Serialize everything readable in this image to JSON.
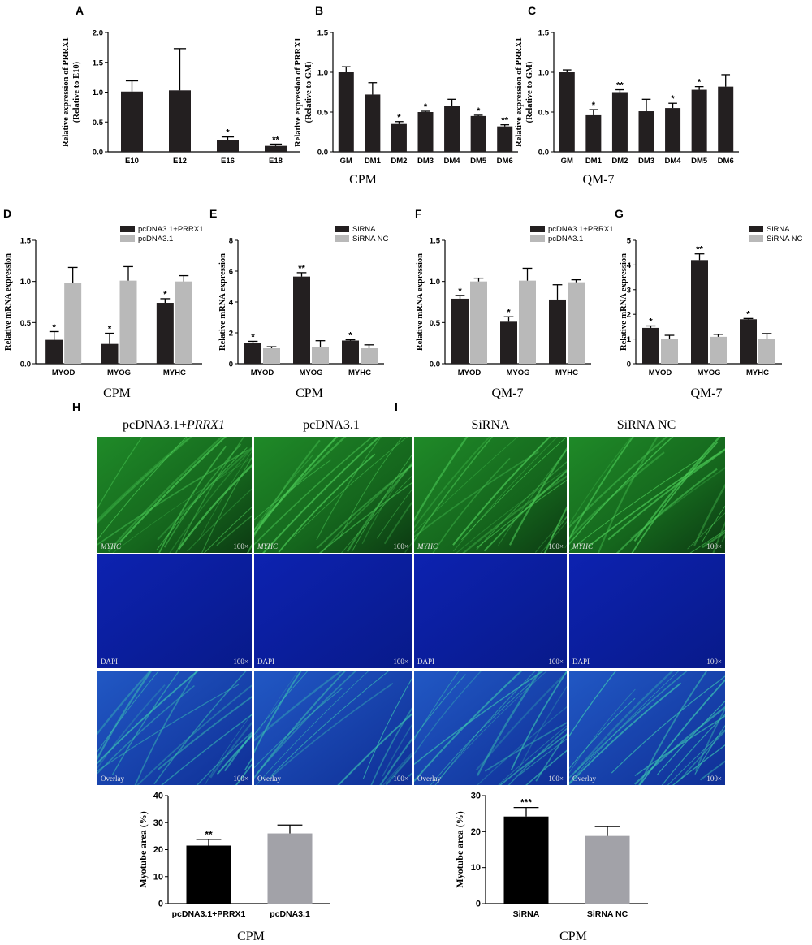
{
  "panel_letters": {
    "A": "A",
    "B": "B",
    "C": "C",
    "D": "D",
    "E": "E",
    "F": "F",
    "G": "G",
    "H": "H",
    "I": "I"
  },
  "captions": {
    "B": "CPM",
    "C": "QM-7",
    "D": "CPM",
    "E": "CPM",
    "F": "QM-7",
    "G": "QM-7",
    "H": "CPM",
    "I": "CPM"
  },
  "colors": {
    "black_bar": "#231f20",
    "gray_bar": "#b9b9b9",
    "gray_bar_large": "#a2a2a8",
    "green_fluor": "#1e7a25",
    "blue_dapi": "#0b1f9e",
    "overlay": "#1a4ab0"
  },
  "micrographs": {
    "H": {
      "columns": [
        "pcDNA3.1+",
        "pcDNA3.1"
      ],
      "first_col_italic": "PRRX1",
      "rows": [
        "MYHC",
        "DAPI",
        "Overlay"
      ],
      "scale": "100×"
    },
    "I": {
      "columns": [
        "SiRNA",
        "SiRNA NC"
      ],
      "rows": [
        "MYHC",
        "DAPI",
        "Overlay"
      ],
      "scale": "100×"
    }
  },
  "chart_data": [
    {
      "id": "A",
      "type": "bar",
      "categories": [
        "E10",
        "E12",
        "E16",
        "E18"
      ],
      "values": [
        1.01,
        1.03,
        0.2,
        0.1
      ],
      "errors": [
        0.18,
        0.7,
        0.05,
        0.03
      ],
      "sig": [
        "",
        "",
        "*",
        "**"
      ],
      "ylabel": [
        "Relative expression of PRRX1",
        "(Relative to E10)"
      ],
      "ylim": [
        0,
        2.0
      ],
      "yticks": [
        "0.0",
        "0.5",
        "1.0",
        "1.5",
        "2.0"
      ],
      "colors": [
        "#231f20"
      ]
    },
    {
      "id": "B",
      "type": "bar",
      "categories": [
        "GM",
        "DM1",
        "DM2",
        "DM3",
        "DM4",
        "DM5",
        "DM6"
      ],
      "values": [
        1.0,
        0.72,
        0.35,
        0.5,
        0.58,
        0.45,
        0.32
      ],
      "errors": [
        0.07,
        0.15,
        0.03,
        0.01,
        0.08,
        0.01,
        0.02
      ],
      "sig": [
        "",
        "",
        "*",
        "*",
        "",
        "*",
        "**"
      ],
      "ylabel": [
        "Relative expression of PRRX1",
        "(Relative to GM)"
      ],
      "ylim": [
        0,
        1.5
      ],
      "yticks": [
        "0.0",
        "0.5",
        "1.0",
        "1.5"
      ],
      "colors": [
        "#231f20"
      ]
    },
    {
      "id": "C",
      "type": "bar",
      "categories": [
        "GM",
        "DM1",
        "DM2",
        "DM3",
        "DM4",
        "DM5",
        "DM6"
      ],
      "values": [
        1.0,
        0.46,
        0.75,
        0.51,
        0.55,
        0.78,
        0.82
      ],
      "errors": [
        0.03,
        0.07,
        0.03,
        0.15,
        0.06,
        0.04,
        0.15
      ],
      "sig": [
        "",
        "*",
        "**",
        "",
        "*",
        "*",
        ""
      ],
      "ylabel": [
        "Relative expression of PRRX1",
        "(Relative to GM)"
      ],
      "ylim": [
        0,
        1.5
      ],
      "yticks": [
        "0.0",
        "0.5",
        "1.0",
        "1.5"
      ],
      "colors": [
        "#231f20"
      ]
    },
    {
      "id": "D",
      "type": "bar",
      "categories": [
        "MYOD",
        "MYOG",
        "MYHC"
      ],
      "series": [
        {
          "name": "pcDNA3.1+PRRX1",
          "values": [
            0.29,
            0.24,
            0.74
          ],
          "errors": [
            0.1,
            0.13,
            0.05
          ],
          "sig": [
            "*",
            "*",
            "*"
          ]
        },
        {
          "name": "pcDNA3.1",
          "values": [
            0.98,
            1.01,
            1.0
          ],
          "errors": [
            0.19,
            0.17,
            0.07
          ],
          "sig": [
            "",
            "",
            ""
          ]
        }
      ],
      "ylabel": [
        "Relative mRNA expression"
      ],
      "ylim": [
        0,
        1.5
      ],
      "yticks": [
        "0.0",
        "0.5",
        "1.0",
        "1.5"
      ],
      "colors": [
        "#231f20",
        "#b9b9b9"
      ]
    },
    {
      "id": "E",
      "type": "bar",
      "categories": [
        "MYOD",
        "MYOG",
        "MYHC"
      ],
      "series": [
        {
          "name": "SiRNA",
          "values": [
            1.33,
            5.65,
            1.5
          ],
          "errors": [
            0.12,
            0.25,
            0.05
          ],
          "sig": [
            "*",
            "**",
            "*"
          ]
        },
        {
          "name": "SiRNA NC",
          "values": [
            1.0,
            1.07,
            1.0
          ],
          "errors": [
            0.1,
            0.42,
            0.22
          ],
          "sig": [
            "",
            "",
            ""
          ]
        }
      ],
      "ylabel": [
        "Relative mRNA expression"
      ],
      "ylim": [
        0,
        8
      ],
      "yticks": [
        "0",
        "2",
        "4",
        "6",
        "8"
      ],
      "colors": [
        "#231f20",
        "#b9b9b9"
      ]
    },
    {
      "id": "F",
      "type": "bar",
      "categories": [
        "MYOD",
        "MYOG",
        "MYHC"
      ],
      "series": [
        {
          "name": "pcDNA3.1+PRRX1",
          "values": [
            0.79,
            0.51,
            0.78
          ],
          "errors": [
            0.04,
            0.06,
            0.18
          ],
          "sig": [
            "*",
            "*",
            ""
          ]
        },
        {
          "name": "pcDNA3.1",
          "values": [
            1.0,
            1.01,
            0.99
          ],
          "errors": [
            0.04,
            0.15,
            0.03
          ],
          "sig": [
            "",
            "",
            ""
          ]
        }
      ],
      "ylabel": [
        "Relative mRNA expression"
      ],
      "ylim": [
        0,
        1.5
      ],
      "yticks": [
        "0.0",
        "0.5",
        "1.0",
        "1.5"
      ],
      "colors": [
        "#231f20",
        "#b9b9b9"
      ]
    },
    {
      "id": "G",
      "type": "bar",
      "categories": [
        "MYOD",
        "MYOG",
        "MYHC"
      ],
      "series": [
        {
          "name": "SiRNA",
          "values": [
            1.45,
            4.2,
            1.8
          ],
          "errors": [
            0.08,
            0.25,
            0.03
          ],
          "sig": [
            "*",
            "**",
            "*"
          ]
        },
        {
          "name": "SiRNA NC",
          "values": [
            1.0,
            1.09,
            1.0
          ],
          "errors": [
            0.15,
            0.1,
            0.22
          ],
          "sig": [
            "",
            "",
            ""
          ]
        }
      ],
      "ylabel": [
        "Relative mRNA expression"
      ],
      "ylim": [
        0,
        5
      ],
      "yticks": [
        "0",
        "1",
        "2",
        "3",
        "4",
        "5"
      ],
      "colors": [
        "#231f20",
        "#b9b9b9"
      ]
    },
    {
      "id": "H_bar",
      "type": "bar",
      "categories": [
        "pcDNA3.1+PRRX1",
        "pcDNA3.1"
      ],
      "values": [
        21.5,
        26.0
      ],
      "errors": [
        2.3,
        3.1
      ],
      "sig": [
        "**",
        ""
      ],
      "ylabel": [
        "Myotube area (%)"
      ],
      "ylim": [
        0,
        40
      ],
      "yticks": [
        "0",
        "10",
        "20",
        "30",
        "40"
      ],
      "colors": [
        "#000000",
        "#a2a2a8"
      ]
    },
    {
      "id": "I_bar",
      "type": "bar",
      "categories": [
        "SiRNA",
        "SiRNA NC"
      ],
      "values": [
        24.2,
        18.8
      ],
      "errors": [
        2.5,
        2.6
      ],
      "sig": [
        "***",
        ""
      ],
      "ylabel": [
        "Myotube area (%)"
      ],
      "ylim": [
        0,
        30
      ],
      "yticks": [
        "0",
        "10",
        "20",
        "30"
      ],
      "colors": [
        "#000000",
        "#a2a2a8"
      ]
    }
  ]
}
